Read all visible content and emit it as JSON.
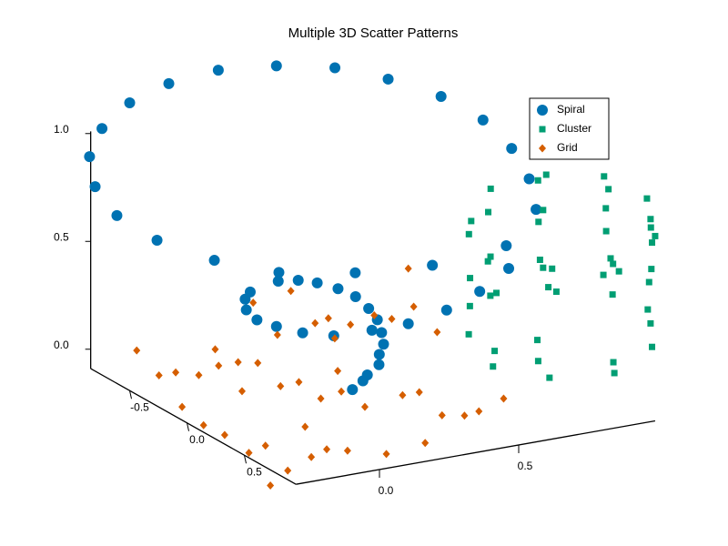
{
  "chart_data": {
    "type": "scatter3d",
    "title": "Multiple 3D Scatter Patterns",
    "xlim": [
      -0.3,
      0.99
    ],
    "ylim": [
      -0.84,
      0.95
    ],
    "zlim": [
      -0.09,
      1.01
    ],
    "xticks": [
      {
        "value": 0,
        "label": "0.0"
      },
      {
        "value": 0.5,
        "label": "0.5"
      }
    ],
    "yticks": [
      {
        "value": -0.5,
        "label": "-0.5"
      },
      {
        "value": 0,
        "label": "0.0"
      },
      {
        "value": 0.5,
        "label": "0.5"
      }
    ],
    "zticks": [
      {
        "value": 0,
        "label": "0.0"
      },
      {
        "value": 0.5,
        "label": "0.5"
      },
      {
        "value": 1,
        "label": "1.0"
      }
    ],
    "legend": "upper right",
    "series": [
      {
        "name": "Spiral",
        "color": "#0072b2",
        "marker": "circle",
        "x": [
          0.22,
          0.27,
          0.29,
          0.34,
          0.37,
          0.41,
          0.44,
          0.47,
          0.48,
          0.47,
          0.44,
          0.39,
          0.33,
          0.25,
          0.1,
          0.02,
          -0.05,
          -0.09,
          -0.09,
          -0.07,
          -0.02,
          0.08,
          0.19,
          0.34,
          0.5,
          0.67,
          0.69,
          0.33,
          0.02,
          -0.25,
          -0.42,
          -0.49,
          -0.49,
          -0.42,
          -0.3,
          -0.14,
          0.05,
          0.24,
          0.43,
          0.61,
          0.75,
          0.83,
          0.88,
          0.87,
          0.8,
          0.69,
          0.55
        ],
        "y": [
          0.18,
          0.15,
          0.14,
          0.12,
          0.05,
          -0.01,
          -0.1,
          -0.21,
          -0.31,
          -0.4,
          -0.48,
          -0.54,
          -0.56,
          -0.54,
          -0.42,
          -0.27,
          -0.09,
          0.1,
          0.27,
          0.45,
          0.6,
          0.69,
          0.74,
          0.71,
          0.61,
          0.45,
          0.38,
          0.61,
          0.69,
          0.68,
          0.53,
          0.2,
          -0.15,
          -0.51,
          -0.85,
          -1.13,
          -1.35,
          -1.47,
          -1.5,
          -1.43,
          -1.26,
          -0.99,
          -0.65,
          -0.26,
          0.16,
          0.58,
          0.98
        ],
        "z": [
          0,
          0.02,
          0.04,
          0.07,
          0.09,
          0.11,
          0.13,
          0.15,
          0.17,
          0.2,
          0.22,
          0.24,
          0.26,
          0.28,
          0.3,
          0.33,
          0.35,
          0.37,
          0.39,
          0.41,
          0.43,
          0.46,
          0.48,
          0.5,
          0.52,
          0.54,
          0.62,
          0.68,
          0.74,
          0.8,
          0.85,
          0.86,
          0.87,
          0.88,
          0.89,
          0.9,
          0.91,
          0.92,
          0.93,
          0.93,
          0.94,
          0.95,
          0.96,
          0.97,
          0.98,
          0.99,
          1.0
        ]
      },
      {
        "name": "Cluster",
        "color": "#009e73",
        "marker": "square",
        "x": [
          1.06,
          1.01,
          0.84,
          0.63,
          0.56,
          0.72,
          0.88,
          0.81,
          1.21,
          1.16,
          1.06,
          1.22,
          1.13,
          1.09,
          1.06,
          1.02,
          0.95,
          0.51,
          0.48,
          0.63,
          0.6,
          0.62,
          0.83,
          0.81,
          0.79,
          0.73,
          0.89,
          0.82,
          0.35,
          0.35,
          0.32,
          0.52,
          0.52,
          0.66,
          0.58,
          0.44,
          0.43,
          0.35,
          0.6,
          0.5,
          0.45,
          0.7,
          0.65,
          1.05,
          0.99,
          0.88
        ],
        "y": [
          -0.17,
          -0.12,
          -0.12,
          0.22,
          0.37,
          0.15,
          0.24,
          0.37,
          -0.03,
          0.13,
          0.35,
          0.32,
          0.57,
          0.67,
          0.78,
          0.85,
          0.62,
          0.68,
          0.73,
          0.82,
          0.92,
          0.95,
          0.95,
          1.02,
          1.12,
          1.13,
          1.16,
          1.31,
          0.89,
          1.12,
          1.14,
          1.16,
          1.23,
          1.38,
          0.33,
          0.66,
          0.91,
          1.09,
          0.87,
          1.12,
          1.34,
          1.29,
          1.42,
          0.74,
          0.91,
          1.19
        ],
        "z": [
          0.7,
          0.7,
          0.7,
          0.7,
          0.7,
          0.7,
          0.7,
          0.7,
          0.7,
          0.7,
          0.7,
          0.7,
          0.7,
          0.7,
          0.7,
          0.7,
          0.7,
          0.7,
          0.7,
          0.7,
          0.7,
          0.7,
          0.7,
          0.7,
          0.7,
          0.7,
          0.7,
          0.7,
          0.7,
          0.7,
          0.7,
          0.7,
          0.7,
          0.7,
          0.35,
          0.35,
          0.35,
          0.35,
          0.35,
          0.35,
          0.35,
          0.35,
          0.35,
          0.35,
          0.35,
          0.35
        ]
      },
      {
        "name": "Grid",
        "color": "#d55e00",
        "marker": "diamond",
        "x": [
          -0.18,
          -0.24,
          -0.18,
          -0.13,
          0.04,
          -0.03,
          0.04,
          0.09,
          -0.09,
          -0.33,
          -0.36,
          -0.35,
          -0.37,
          -0.29,
          -0.35,
          -0.47,
          -0.09,
          -0.22,
          -0.14,
          -0.09,
          0.0,
          0.16,
          0.34,
          0.4,
          0.46,
          0.59,
          0.39,
          0.33,
          0.17,
          0.18,
          0.27,
          0.09,
          0.11,
          0.04,
          0.28,
          0.53,
          0.44,
          0.5,
          0.42,
          0.53,
          0.64,
          0.67,
          0.79,
          0.73,
          0.96,
          0.37
        ],
        "y": [
          -0.73,
          -0.39,
          -0.39,
          -0.31,
          -0.58,
          -0.38,
          -0.38,
          -0.33,
          -0.03,
          0.03,
          0.29,
          0.45,
          0.71,
          0.66,
          1.0,
          1.14,
          0.52,
          0.89,
          0.83,
          0.89,
          1.01,
          0.96,
          0.67,
          0.72,
          0.7,
          0.6,
          0.35,
          0.35,
          0.41,
          0.18,
          -0.07,
          0.22,
          -0.02,
          -0.01,
          -0.62,
          -1.11,
          -0.68,
          -0.71,
          -0.46,
          -0.59,
          -0.65,
          -0.57,
          -0.67,
          -0.32,
          -1.13,
          -1.05
        ],
        "z": [
          0,
          0,
          0,
          0,
          0,
          0,
          0,
          0,
          0,
          0,
          0,
          0,
          0,
          0,
          0,
          0,
          0,
          0,
          0,
          0,
          0,
          0,
          0,
          0,
          0,
          0,
          0,
          0,
          0,
          0,
          0,
          0,
          0,
          0,
          0,
          0,
          0,
          0,
          0,
          0,
          0,
          0,
          0,
          0,
          0,
          0
        ]
      }
    ]
  }
}
